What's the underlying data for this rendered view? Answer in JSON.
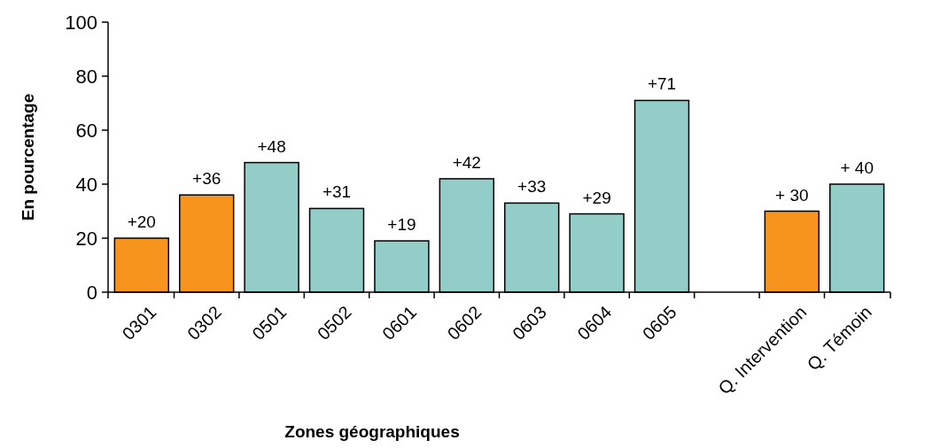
{
  "chart_data": {
    "type": "bar",
    "xlabel": "Zones géographiques",
    "ylabel": "En pourcentage",
    "categories": [
      "0301",
      "0302",
      "0501",
      "0502",
      "0601",
      "0602",
      "0603",
      "0604",
      "0605",
      null,
      "Q. Intervention",
      "Q. Témoin"
    ],
    "values": [
      20,
      36,
      48,
      31,
      19,
      42,
      33,
      29,
      71,
      null,
      30,
      40
    ],
    "colors": [
      "#f7941d",
      "#f7941d",
      "#93cdc8",
      "#93cdc8",
      "#93cdc8",
      "#93cdc8",
      "#93cdc8",
      "#93cdc8",
      "#93cdc8",
      null,
      "#f7941d",
      "#93cdc8"
    ],
    "value_labels": [
      "+20",
      "+36",
      "+48",
      "+31",
      "+19",
      "+42",
      "+33",
      "+29",
      "+71",
      null,
      "+ 30",
      "+ 40"
    ],
    "ylim": [
      0,
      100
    ],
    "yticks": [
      0,
      20,
      40,
      60,
      80,
      100
    ],
    "grid": false
  }
}
